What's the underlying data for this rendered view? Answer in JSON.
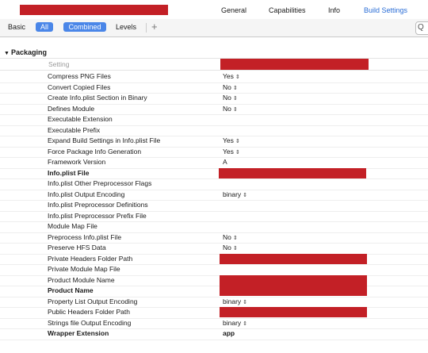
{
  "tabs": [
    {
      "label": "General",
      "active": false
    },
    {
      "label": "Capabilities",
      "active": false
    },
    {
      "label": "Info",
      "active": false
    },
    {
      "label": "Build Settings",
      "active": true
    }
  ],
  "filter": {
    "basic": "Basic",
    "all": "All",
    "combined": "Combined",
    "levels": "Levels",
    "add": "+",
    "search_icon": "Q"
  },
  "section": {
    "title": "Packaging",
    "disclosure": "▼",
    "column_header": "Setting"
  },
  "rows": [
    {
      "name": "Compress PNG Files",
      "value": "Yes",
      "stepper": true,
      "bold": false,
      "redacted": false
    },
    {
      "name": "Convert Copied Files",
      "value": "No",
      "stepper": true,
      "bold": false,
      "redacted": false
    },
    {
      "name": "Create Info.plist Section in Binary",
      "value": "No",
      "stepper": true,
      "bold": false,
      "redacted": false
    },
    {
      "name": "Defines Module",
      "value": "No",
      "stepper": true,
      "bold": false,
      "redacted": false
    },
    {
      "name": "Executable Extension",
      "value": "",
      "stepper": false,
      "bold": false,
      "redacted": false
    },
    {
      "name": "Executable Prefix",
      "value": "",
      "stepper": false,
      "bold": false,
      "redacted": false
    },
    {
      "name": "Expand Build Settings in Info.plist File",
      "value": "Yes",
      "stepper": true,
      "bold": false,
      "redacted": false
    },
    {
      "name": "Force Package Info Generation",
      "value": "Yes",
      "stepper": true,
      "bold": false,
      "redacted": false
    },
    {
      "name": "Framework Version",
      "value": "A",
      "stepper": false,
      "bold": false,
      "redacted": false
    },
    {
      "name": "Info.plist File",
      "value": "",
      "stepper": false,
      "bold": true,
      "redacted": true
    },
    {
      "name": "Info.plist Other Preprocessor Flags",
      "value": "",
      "stepper": false,
      "bold": false,
      "redacted": false
    },
    {
      "name": "Info.plist Output Encoding",
      "value": "binary",
      "stepper": true,
      "bold": false,
      "redacted": false
    },
    {
      "name": "Info.plist Preprocessor Definitions",
      "value": "",
      "stepper": false,
      "bold": false,
      "redacted": false
    },
    {
      "name": "Info.plist Preprocessor Prefix File",
      "value": "",
      "stepper": false,
      "bold": false,
      "redacted": false
    },
    {
      "name": "Module Map File",
      "value": "",
      "stepper": false,
      "bold": false,
      "redacted": false
    },
    {
      "name": "Preprocess Info.plist File",
      "value": "No",
      "stepper": true,
      "bold": false,
      "redacted": false
    },
    {
      "name": "Preserve HFS Data",
      "value": "No",
      "stepper": true,
      "bold": false,
      "redacted": false
    },
    {
      "name": "Private Headers Folder Path",
      "value": "",
      "stepper": false,
      "bold": false,
      "redacted": true
    },
    {
      "name": "Private Module Map File",
      "value": "",
      "stepper": false,
      "bold": false,
      "redacted": false
    },
    {
      "name": "Product Module Name",
      "value": "",
      "stepper": false,
      "bold": false,
      "redacted": true
    },
    {
      "name": "Product Name",
      "value": "",
      "stepper": false,
      "bold": true,
      "redacted": true
    },
    {
      "name": "Property List Output Encoding",
      "value": "binary",
      "stepper": true,
      "bold": false,
      "redacted": false
    },
    {
      "name": "Public Headers Folder Path",
      "value": "",
      "stepper": false,
      "bold": false,
      "redacted": true
    },
    {
      "name": "Strings file Output Encoding",
      "value": "binary",
      "stepper": true,
      "bold": false,
      "redacted": false
    },
    {
      "name": "Wrapper Extension",
      "value": "app",
      "stepper": false,
      "bold": true,
      "redacted": false
    }
  ],
  "colors": {
    "accent": "#4a86e8",
    "active_tab": "#2a6dd6",
    "redaction": "#c32026"
  }
}
